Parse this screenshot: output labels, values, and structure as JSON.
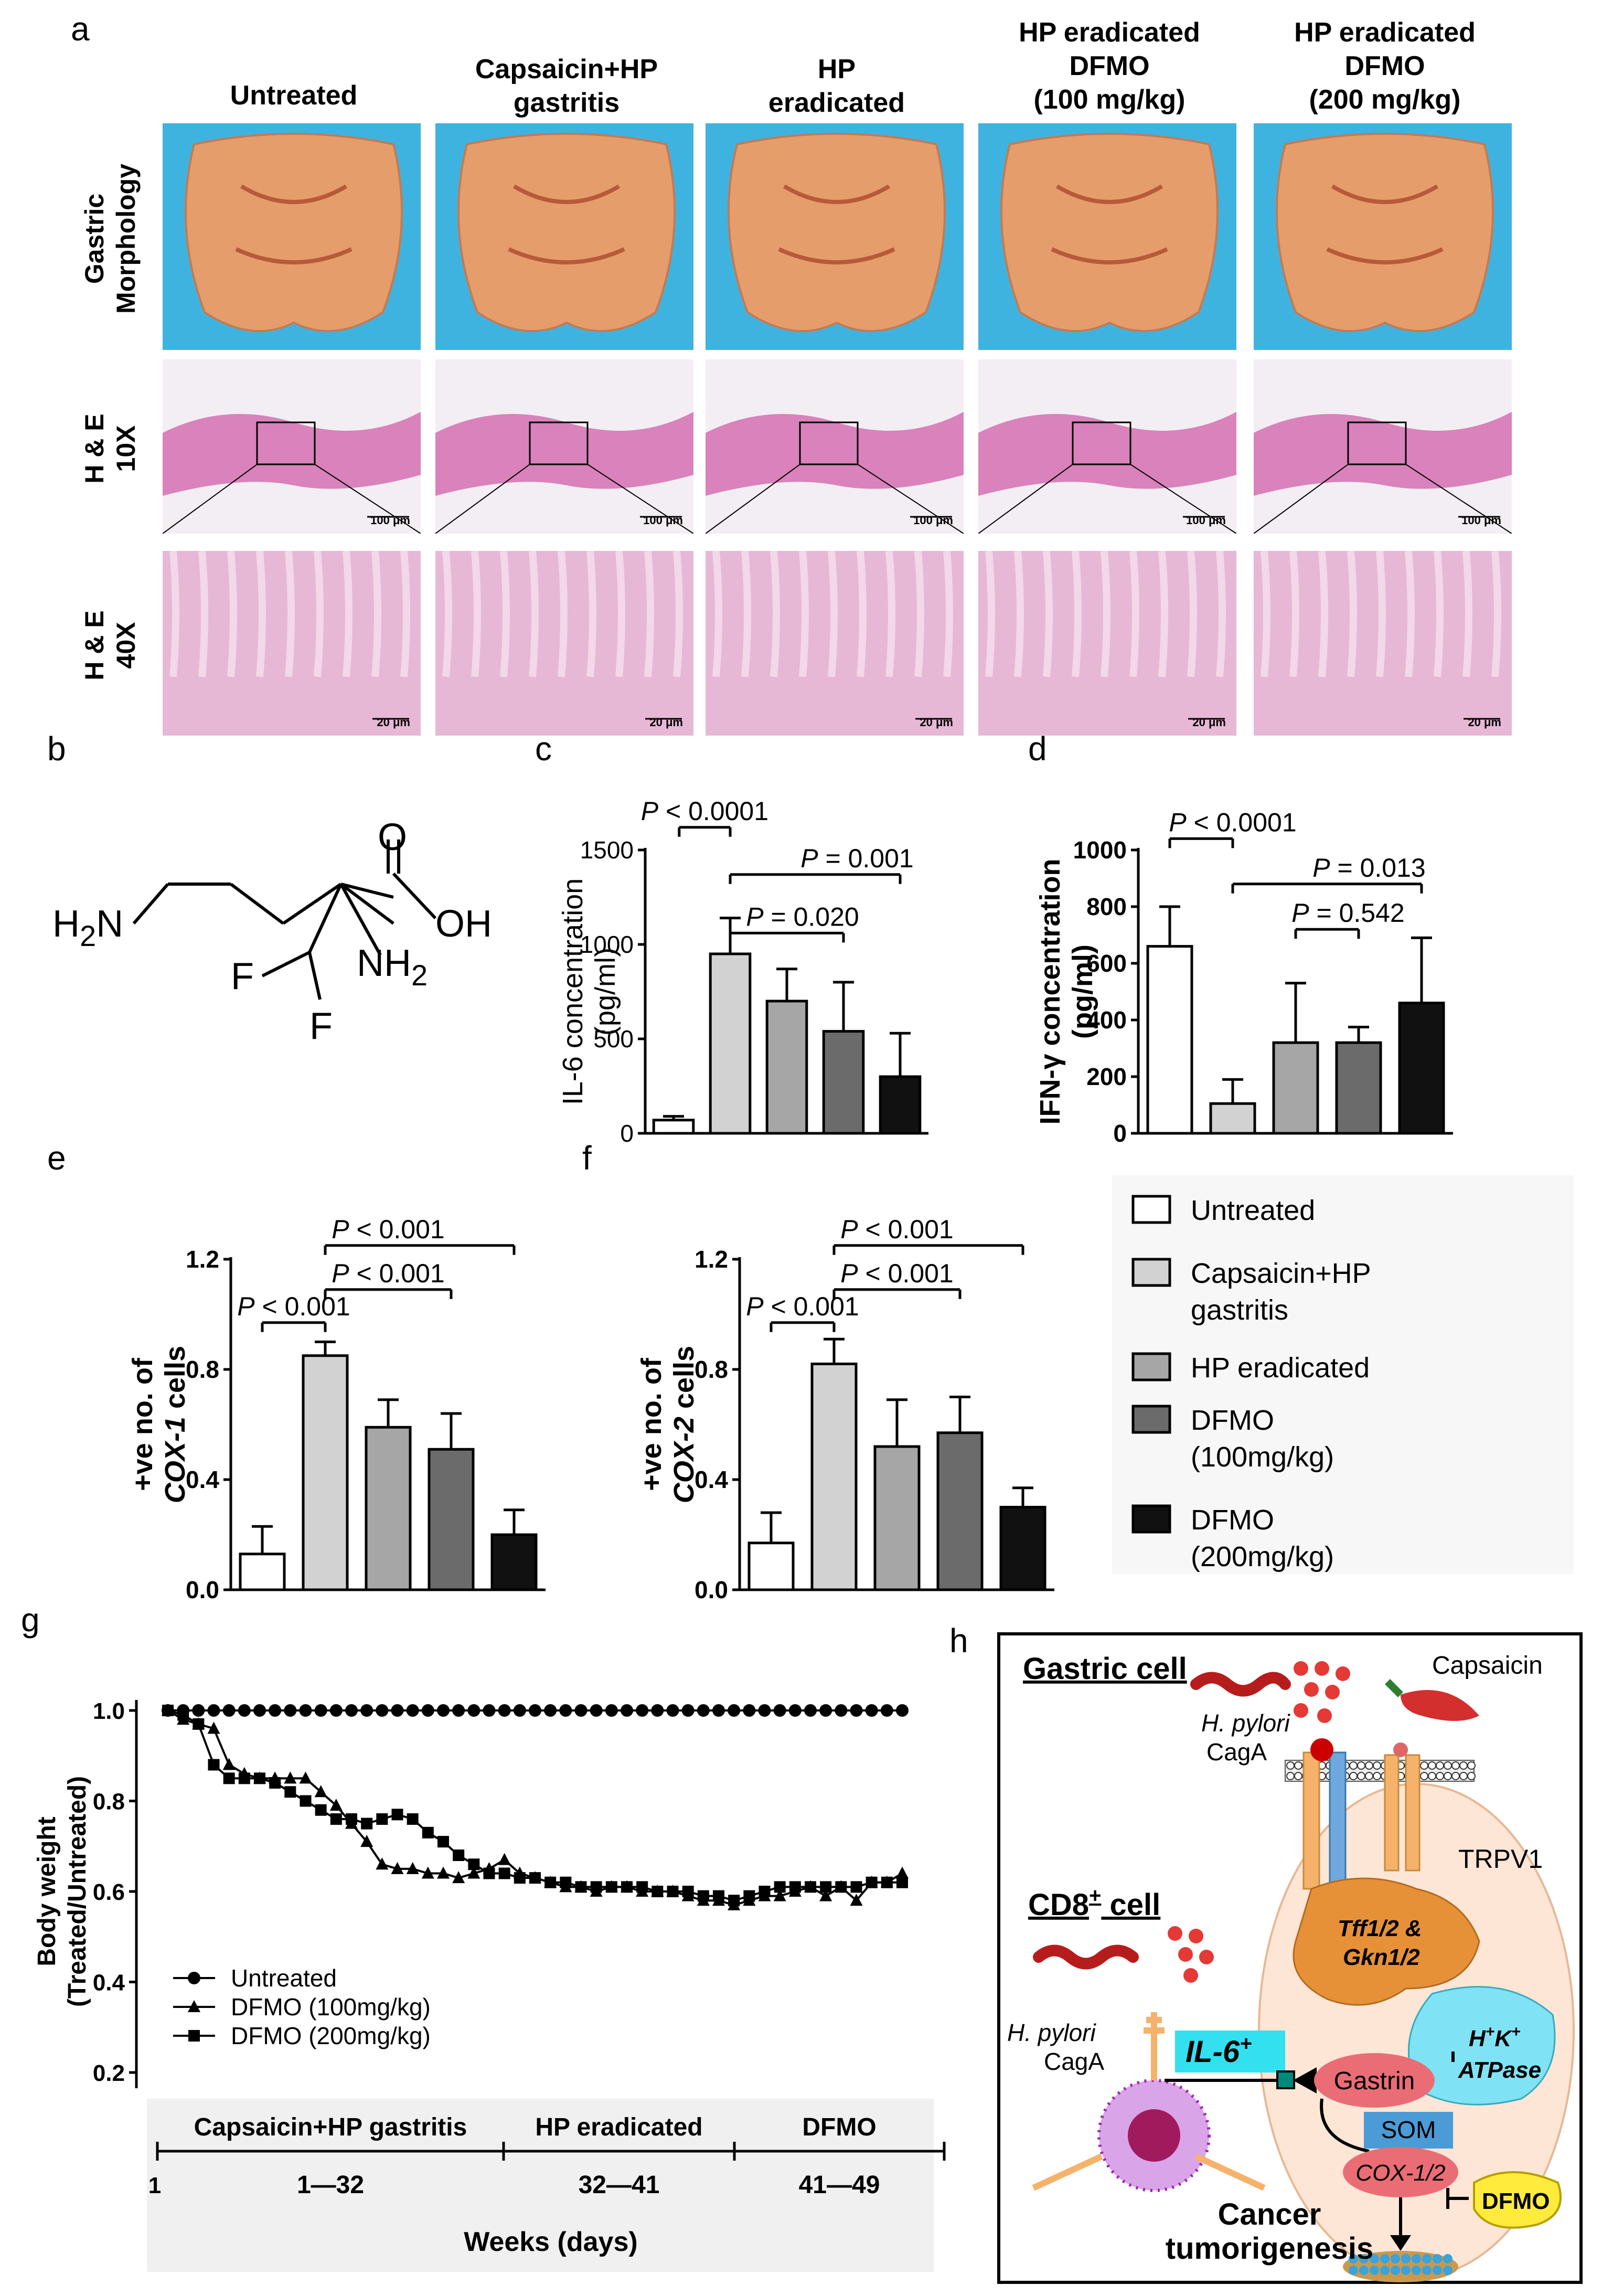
{
  "panel_a": {
    "letter": "a",
    "columns": [
      "Untreated",
      "Capsaicin+HP\ngastritis",
      "HP\neradicated",
      "HP eradicated\nDFMO\n(100 mg/kg)",
      "HP eradicated\nDFMO\n(200 mg/kg)"
    ],
    "rows": [
      "Gastric\nMorphology",
      "H & E\n10X",
      "H & E\n40X"
    ],
    "scale_10x": "100 μm",
    "scale_40x": "20 μm"
  },
  "panel_b": {
    "letter": "b",
    "atoms": {
      "amine_left": "H2N",
      "carbonyl": "O",
      "hydroxyl": "OH",
      "amine_alpha": "NH2",
      "fluorine_1": "F",
      "fluorine_2": "F"
    }
  },
  "panel_c": {
    "letter": "c",
    "ylabel": "IL-6 concentration\n(pg/ml)",
    "p_values": [
      "P < 0.0001",
      "P = 0.001",
      "P = 0.020"
    ]
  },
  "panel_d": {
    "letter": "d",
    "ylabel": "IFN-γ concentration\n(pg/ml)",
    "p_values": [
      "P < 0.0001",
      "P = 0.013",
      "P = 0.542"
    ]
  },
  "panel_e": {
    "letter": "e",
    "ylabel": "+ve no. of\nCOX-1 cells",
    "p_values": [
      "P < 0.001",
      "P < 0.001",
      "P < 0.001"
    ]
  },
  "panel_f": {
    "letter": "f",
    "ylabel": "+ve no. of\nCOX-2 cells",
    "p_values": [
      "P < 0.001",
      "P < 0.001",
      "P < 0.001"
    ]
  },
  "legend_ef": {
    "items": [
      {
        "label": "Untreated",
        "color": "#ffffff"
      },
      {
        "label": "Capsaicin+HP\ngastritis",
        "color": "#d2d2d2"
      },
      {
        "label": "HP eradicated",
        "color": "#a6a6a6"
      },
      {
        "label": "DFMO\n(100mg/kg)",
        "color": "#6b6b6b"
      },
      {
        "label": "DFMO\n(200mg/kg)",
        "color": "#111111"
      }
    ]
  },
  "panel_g": {
    "letter": "g",
    "ylabel": "Body weight\n(Treated/Untreated)",
    "xlabel": "Weeks (days)",
    "legend": [
      "Untreated",
      "DFMO (100mg/kg)",
      "DFMO (200mg/kg)"
    ],
    "phases": [
      {
        "name": "Capsaicin+HP gastritis",
        "range": "1—32"
      },
      {
        "name": "HP eradicated",
        "range": "32—41"
      },
      {
        "name": "DFMO",
        "range": "41—49"
      }
    ],
    "start_tick": "1"
  },
  "panel_h": {
    "letter": "h",
    "gastric_cell": "Gastric cell",
    "capsaicin": "Capsaicin",
    "h_pylori_1": "H. pylori",
    "caga_1": "CagA",
    "trpv1": "TRPV1",
    "cd8": "CD8",
    "cd8_sup": "+",
    "cd8_suffix": " cell",
    "tff": "Tff1/2 &\nGkn1/2",
    "h_pylori_2": "H. pylori",
    "caga_2": "CagA",
    "il6": "IL-6",
    "il6_sup": "+",
    "hk_atpase": "H⁺K⁺\nATPase",
    "gastrin": "Gastrin",
    "som": "SOM",
    "cox": "COX-1/2",
    "dfmo": "DFMO",
    "cancer": "Cancer\ntumorigenesis"
  },
  "chart_data": [
    {
      "panel": "c",
      "type": "bar",
      "categories": [
        "Untreated",
        "Capsaicin+HP gastritis",
        "HP eradicated",
        "DFMO (100mg/kg)",
        "DFMO (200mg/kg)"
      ],
      "values": [
        70,
        950,
        700,
        540,
        300
      ],
      "errors": [
        20,
        190,
        170,
        260,
        230
      ],
      "ylim": [
        0,
        1500
      ],
      "yticks": [
        0,
        500,
        1000,
        1500
      ],
      "colors": [
        "#ffffff",
        "#d2d2d2",
        "#a6a6a6",
        "#6b6b6b",
        "#111111"
      ]
    },
    {
      "panel": "d",
      "type": "bar",
      "categories": [
        "Untreated",
        "Capsaicin+HP gastritis",
        "HP eradicated",
        "DFMO (100mg/kg)",
        "DFMO (200mg/kg)"
      ],
      "values": [
        660,
        105,
        320,
        320,
        460
      ],
      "errors": [
        140,
        85,
        210,
        55,
        230
      ],
      "ylim": [
        0,
        1000
      ],
      "yticks": [
        0,
        200,
        400,
        600,
        800,
        1000
      ],
      "colors": [
        "#ffffff",
        "#d2d2d2",
        "#a6a6a6",
        "#6b6b6b",
        "#111111"
      ]
    },
    {
      "panel": "e",
      "type": "bar",
      "categories": [
        "Untreated",
        "Capsaicin+HP gastritis",
        "HP eradicated",
        "DFMO (100mg/kg)",
        "DFMO (200mg/kg)"
      ],
      "values": [
        0.13,
        0.85,
        0.59,
        0.51,
        0.2
      ],
      "errors": [
        0.1,
        0.05,
        0.1,
        0.13,
        0.09
      ],
      "ylim": [
        0,
        1.2
      ],
      "yticks": [
        0.0,
        0.4,
        0.8,
        1.2
      ],
      "colors": [
        "#ffffff",
        "#d2d2d2",
        "#a6a6a6",
        "#6b6b6b",
        "#111111"
      ]
    },
    {
      "panel": "f",
      "type": "bar",
      "categories": [
        "Untreated",
        "Capsaicin+HP gastritis",
        "HP eradicated",
        "DFMO (100mg/kg)",
        "DFMO (200mg/kg)"
      ],
      "values": [
        0.17,
        0.82,
        0.52,
        0.57,
        0.3
      ],
      "errors": [
        0.11,
        0.09,
        0.17,
        0.13,
        0.07
      ],
      "ylim": [
        0,
        1.2
      ],
      "yticks": [
        0.0,
        0.4,
        0.8,
        1.2
      ],
      "colors": [
        "#ffffff",
        "#d2d2d2",
        "#a6a6a6",
        "#6b6b6b",
        "#111111"
      ]
    },
    {
      "panel": "g",
      "type": "line",
      "ylim": [
        0.2,
        1.0
      ],
      "yticks": [
        0.2,
        0.4,
        0.6,
        0.8,
        1.0
      ],
      "series": [
        {
          "name": "Untreated",
          "marker": "circle",
          "values": [
            1.0,
            1.0,
            1.0,
            1.0,
            1.0,
            1.0,
            1.0,
            1.0,
            1.0,
            1.0,
            1.0,
            1.0,
            1.0,
            1.0,
            1.0,
            1.0,
            1.0,
            1.0,
            1.0,
            1.0,
            1.0,
            1.0,
            1.0,
            1.0,
            1.0,
            1.0,
            1.0,
            1.0,
            1.0,
            1.0,
            1.0,
            1.0,
            1.0,
            1.0,
            1.0,
            1.0,
            1.0,
            1.0,
            1.0,
            1.0,
            1.0,
            1.0,
            1.0,
            1.0,
            1.0,
            1.0,
            1.0,
            1.0,
            1.0
          ]
        },
        {
          "name": "DFMO (100mg/kg)",
          "marker": "triangle",
          "values": [
            1.0,
            0.98,
            0.97,
            0.96,
            0.88,
            0.86,
            0.85,
            0.85,
            0.85,
            0.85,
            0.82,
            0.79,
            0.75,
            0.71,
            0.66,
            0.65,
            0.65,
            0.64,
            0.64,
            0.63,
            0.64,
            0.65,
            0.67,
            0.64,
            0.63,
            0.62,
            0.61,
            0.61,
            0.6,
            0.61,
            0.61,
            0.6,
            0.6,
            0.6,
            0.59,
            0.58,
            0.58,
            0.57,
            0.58,
            0.59,
            0.59,
            0.6,
            0.61,
            0.59,
            0.61,
            0.58,
            0.62,
            0.62,
            0.64
          ]
        },
        {
          "name": "DFMO (200mg/kg)",
          "marker": "square",
          "values": [
            1.0,
            0.99,
            0.97,
            0.88,
            0.85,
            0.85,
            0.85,
            0.84,
            0.82,
            0.8,
            0.78,
            0.76,
            0.76,
            0.75,
            0.76,
            0.77,
            0.76,
            0.73,
            0.71,
            0.68,
            0.66,
            0.64,
            0.64,
            0.63,
            0.63,
            0.62,
            0.62,
            0.61,
            0.61,
            0.61,
            0.61,
            0.61,
            0.6,
            0.6,
            0.6,
            0.59,
            0.59,
            0.58,
            0.59,
            0.6,
            0.61,
            0.61,
            0.61,
            0.61,
            0.61,
            0.61,
            0.62,
            0.62,
            0.62
          ]
        }
      ]
    }
  ]
}
